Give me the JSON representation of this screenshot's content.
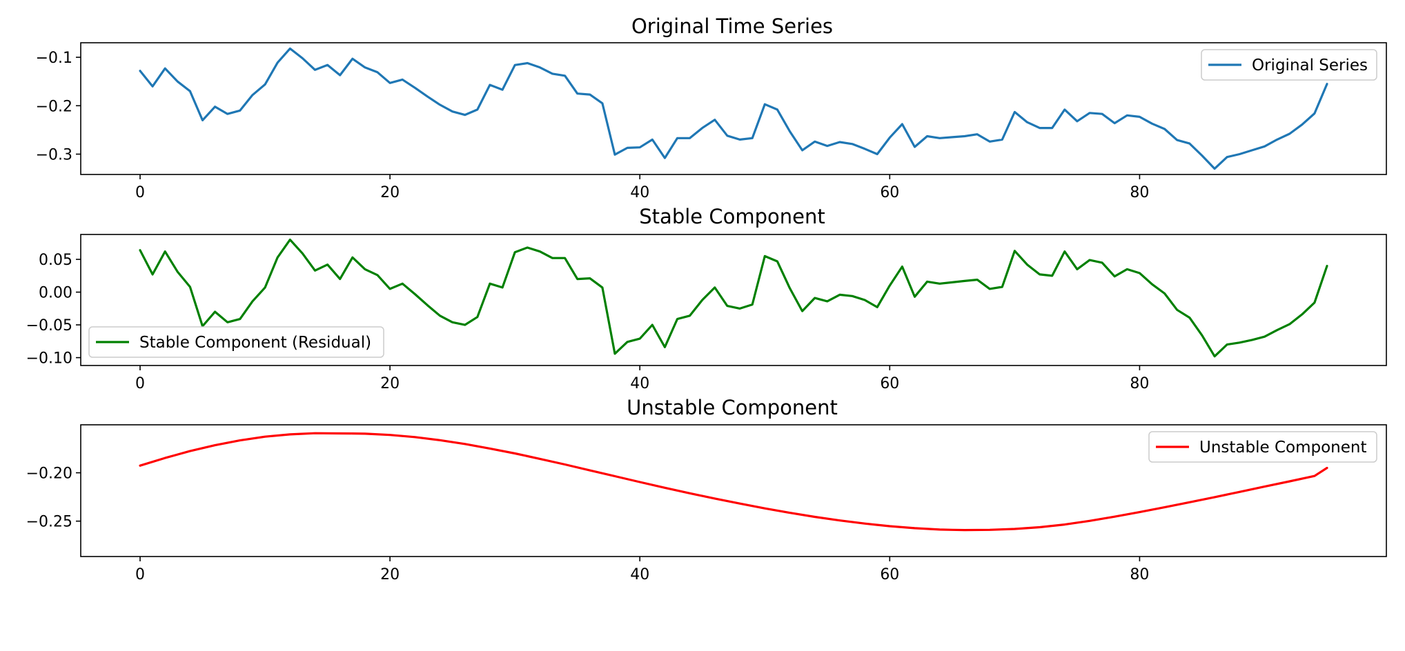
{
  "figure": {
    "title_original": "Original Time Series",
    "title_stable": "Stable Component",
    "title_unstable": "Unstable Component"
  },
  "chart_data": [
    {
      "type": "line",
      "title": "Original Time Series",
      "xlabel": "",
      "ylabel": "",
      "xlim": [
        -4.75,
        99.75
      ],
      "ylim": [
        -0.342,
        -0.07
      ],
      "xticks": [
        0,
        20,
        40,
        60,
        80
      ],
      "xtick_labels": [
        "0",
        "20",
        "40",
        "60",
        "80"
      ],
      "yticks": [
        -0.1,
        -0.2,
        -0.3
      ],
      "ytick_labels": [
        "−0.1",
        "−0.2",
        "−0.3"
      ],
      "legend_position": "upper-right",
      "grid": false,
      "series": [
        {
          "name": "Original Series",
          "color": "#1f77b4",
          "x": [
            0,
            1,
            2,
            3,
            4,
            5,
            6,
            7,
            8,
            9,
            10,
            11,
            12,
            13,
            14,
            15,
            16,
            17,
            18,
            19,
            20,
            21,
            22,
            23,
            24,
            25,
            26,
            27,
            28,
            29,
            30,
            31,
            32,
            33,
            34,
            35,
            36,
            37,
            38,
            39,
            40,
            41,
            42,
            43,
            44,
            45,
            46,
            47,
            48,
            49,
            50,
            51,
            52,
            53,
            54,
            55,
            56,
            57,
            58,
            59,
            60,
            61,
            62,
            63,
            64,
            65,
            66,
            67,
            68,
            69,
            70,
            71,
            72,
            73,
            74,
            75,
            76,
            77,
            78,
            79,
            80,
            81,
            82,
            83,
            84,
            85,
            86,
            87,
            88,
            89,
            90,
            91,
            92,
            93,
            94,
            95
          ],
          "values": [
            -0.128,
            -0.16,
            -0.123,
            -0.15,
            -0.17,
            -0.23,
            -0.202,
            -0.217,
            -0.21,
            -0.178,
            -0.156,
            -0.111,
            -0.082,
            -0.102,
            -0.126,
            -0.116,
            -0.137,
            -0.103,
            -0.121,
            -0.131,
            -0.153,
            -0.146,
            -0.163,
            -0.181,
            -0.198,
            -0.212,
            -0.219,
            -0.208,
            -0.157,
            -0.167,
            -0.116,
            -0.112,
            -0.121,
            -0.134,
            -0.138,
            -0.175,
            -0.177,
            -0.195,
            -0.301,
            -0.287,
            -0.286,
            -0.27,
            -0.308,
            -0.267,
            -0.267,
            -0.246,
            -0.229,
            -0.262,
            -0.27,
            -0.267,
            -0.197,
            -0.208,
            -0.253,
            -0.292,
            -0.274,
            -0.283,
            -0.275,
            -0.279,
            -0.289,
            -0.3,
            -0.266,
            -0.238,
            -0.285,
            -0.263,
            -0.267,
            -0.265,
            -0.263,
            -0.259,
            -0.274,
            -0.27,
            -0.213,
            -0.234,
            -0.246,
            -0.246,
            -0.208,
            -0.232,
            -0.215,
            -0.217,
            -0.236,
            -0.22,
            -0.223,
            -0.237,
            -0.248,
            -0.271,
            -0.278,
            -0.303,
            -0.33,
            -0.306,
            -0.3,
            -0.292,
            -0.284,
            -0.27,
            -0.258,
            -0.239,
            -0.216,
            -0.155
          ]
        }
      ]
    },
    {
      "type": "line",
      "title": "Stable Component",
      "xlabel": "",
      "ylabel": "",
      "xlim": [
        -4.75,
        99.75
      ],
      "ylim": [
        -0.112,
        0.088
      ],
      "xticks": [
        0,
        20,
        40,
        60,
        80
      ],
      "xtick_labels": [
        "0",
        "20",
        "40",
        "60",
        "80"
      ],
      "yticks": [
        0.05,
        0.0,
        -0.05,
        -0.1
      ],
      "ytick_labels": [
        "0.05",
        "0.00",
        "−0.05",
        "−0.10"
      ],
      "legend_position": "lower-left",
      "grid": false,
      "series": [
        {
          "name": "Stable Component (Residual)",
          "color": "#008000",
          "x": [
            0,
            1,
            2,
            3,
            4,
            5,
            6,
            7,
            8,
            9,
            10,
            11,
            12,
            13,
            14,
            15,
            16,
            17,
            18,
            19,
            20,
            21,
            22,
            23,
            24,
            25,
            26,
            27,
            28,
            29,
            30,
            31,
            32,
            33,
            34,
            35,
            36,
            37,
            38,
            39,
            40,
            41,
            42,
            43,
            44,
            45,
            46,
            47,
            48,
            49,
            50,
            51,
            52,
            53,
            54,
            55,
            56,
            57,
            58,
            59,
            60,
            61,
            62,
            63,
            64,
            65,
            66,
            67,
            68,
            69,
            70,
            71,
            72,
            73,
            74,
            75,
            76,
            77,
            78,
            79,
            80,
            81,
            82,
            83,
            84,
            85,
            86,
            87,
            88,
            89,
            90,
            91,
            92,
            93,
            94,
            95
          ],
          "values": [
            0.064,
            0.027,
            0.062,
            0.031,
            0.008,
            -0.052,
            -0.03,
            -0.046,
            -0.041,
            -0.014,
            0.007,
            0.053,
            0.08,
            0.059,
            0.033,
            0.042,
            0.02,
            0.053,
            0.035,
            0.026,
            0.005,
            0.013,
            -0.003,
            -0.02,
            -0.036,
            -0.046,
            -0.05,
            -0.038,
            0.013,
            0.007,
            0.061,
            0.068,
            0.062,
            0.052,
            0.052,
            0.02,
            0.021,
            0.007,
            -0.094,
            -0.076,
            -0.071,
            -0.05,
            -0.084,
            -0.041,
            -0.036,
            -0.012,
            0.007,
            -0.021,
            -0.025,
            -0.019,
            0.055,
            0.047,
            0.006,
            -0.029,
            -0.009,
            -0.014,
            -0.004,
            -0.006,
            -0.012,
            -0.023,
            0.01,
            0.039,
            -0.007,
            0.016,
            0.013,
            0.015,
            0.017,
            0.019,
            0.005,
            0.008,
            0.063,
            0.042,
            0.027,
            0.025,
            0.062,
            0.035,
            0.049,
            0.045,
            0.024,
            0.035,
            0.029,
            0.012,
            -0.002,
            -0.027,
            -0.039,
            -0.066,
            -0.098,
            -0.08,
            -0.077,
            -0.073,
            -0.068,
            -0.058,
            -0.049,
            -0.034,
            -0.016,
            0.04
          ]
        }
      ]
    },
    {
      "type": "line",
      "title": "Unstable Component",
      "xlabel": "",
      "ylabel": "",
      "xlim": [
        -4.75,
        99.75
      ],
      "ylim": [
        -0.2866,
        -0.1504
      ],
      "xticks": [
        0,
        20,
        40,
        60,
        80
      ],
      "xtick_labels": [
        "0",
        "20",
        "40",
        "60",
        "80"
      ],
      "yticks": [
        -0.2,
        -0.25
      ],
      "ytick_labels": [
        "−0.20",
        "−0.25"
      ],
      "legend_position": "upper-right",
      "grid": false,
      "series": [
        {
          "name": "Unstable Component",
          "color": "#ff0000",
          "x": [
            0,
            2,
            4,
            6,
            8,
            10,
            12,
            14,
            16,
            17,
            18,
            20,
            22,
            24,
            26,
            28,
            30,
            32,
            34,
            36,
            38,
            40,
            42,
            44,
            46,
            48,
            50,
            52,
            54,
            56,
            58,
            60,
            62,
            64,
            65,
            66,
            68,
            70,
            72,
            74,
            76,
            78,
            80,
            82,
            84,
            86,
            88,
            90,
            92,
            94,
            95
          ],
          "values": [
            -0.1926,
            -0.1847,
            -0.1776,
            -0.1715,
            -0.1665,
            -0.1627,
            -0.1603,
            -0.1591,
            -0.1593,
            -0.1594,
            -0.1596,
            -0.1609,
            -0.1631,
            -0.1663,
            -0.1702,
            -0.1749,
            -0.18,
            -0.1856,
            -0.1914,
            -0.1975,
            -0.2035,
            -0.2096,
            -0.2155,
            -0.2212,
            -0.2266,
            -0.2318,
            -0.2368,
            -0.2414,
            -0.2456,
            -0.2493,
            -0.2525,
            -0.2552,
            -0.2573,
            -0.2587,
            -0.259,
            -0.2592,
            -0.259,
            -0.2581,
            -0.2563,
            -0.2535,
            -0.2497,
            -0.2454,
            -0.2407,
            -0.2357,
            -0.2305,
            -0.2252,
            -0.2198,
            -0.2143,
            -0.2089,
            -0.2033,
            -0.195
          ]
        }
      ]
    }
  ]
}
